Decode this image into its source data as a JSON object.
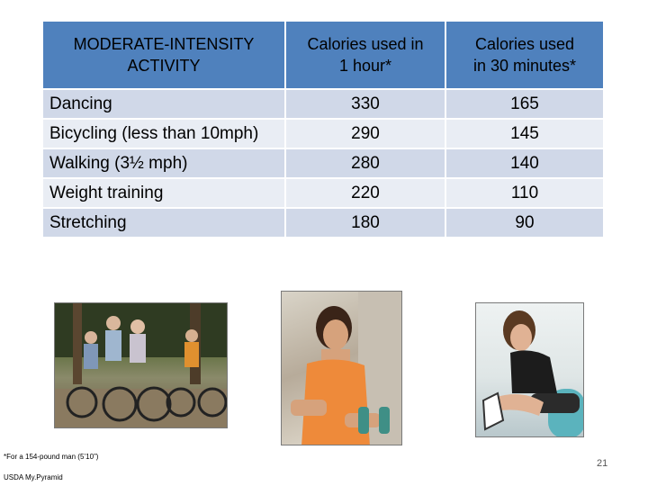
{
  "table": {
    "headers": [
      "MODERATE-INTENSITY\nACTIVITY",
      "Calories used in\n1 hour*",
      "Calories used\nin 30 minutes*"
    ],
    "rows": [
      {
        "activity": "Dancing",
        "per_hour": "330",
        "per_30min": "165"
      },
      {
        "activity": "Bicycling (less than 10mph)",
        "per_hour": "290",
        "per_30min": "145"
      },
      {
        "activity": "Walking (3½ mph)",
        "per_hour": "280",
        "per_30min": "140"
      },
      {
        "activity": "Weight training",
        "per_hour": "220",
        "per_30min": "110"
      },
      {
        "activity": "Stretching",
        "per_hour": "180",
        "per_30min": "90"
      }
    ]
  },
  "footnote": "*For a 154-pound man (5’10”)",
  "source": "USDA My.Pyramid",
  "page_number": "21",
  "colors": {
    "header": "#4f81bd",
    "row_odd": "#d0d8e8",
    "row_even": "#e9edf4"
  }
}
